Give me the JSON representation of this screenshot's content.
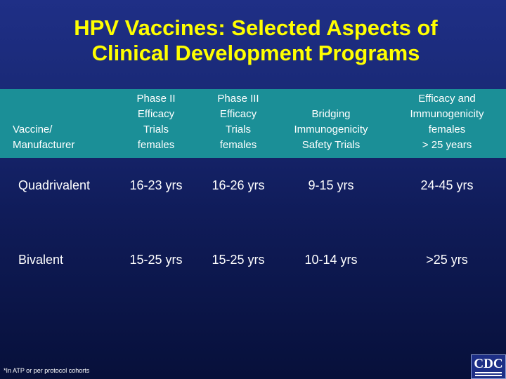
{
  "title": {
    "line1": "HPV Vaccines: Selected Aspects of",
    "line2": "Clinical Development Programs"
  },
  "colors": {
    "title": "#ffff00",
    "header_band": "#1b8f97",
    "background_top": "#1f2f86",
    "background_bottom": "#07103a"
  },
  "table": {
    "headers": {
      "vaccine": [
        "Vaccine/",
        "Manufacturer"
      ],
      "phase2": [
        "Phase II",
        "Efficacy",
        "Trials",
        "females"
      ],
      "phase3": [
        "Phase III",
        "Efficacy",
        "Trials",
        "females"
      ],
      "bridging": [
        "Bridging",
        "Immunogenicity",
        "Safety Trials"
      ],
      "efficacy_imm": [
        "Efficacy and",
        "Immunogenicity",
        "females",
        "> 25 years"
      ]
    },
    "rows": [
      {
        "vaccine": "Quadrivalent",
        "phase2": "16-23 yrs",
        "phase3": "16-26 yrs",
        "bridging": "9-15 yrs",
        "efficacy_imm": "24-45 yrs"
      },
      {
        "vaccine": "Bivalent",
        "phase2": "15-25 yrs",
        "phase3": "15-25 yrs",
        "bridging": "10-14 yrs",
        "efficacy_imm": ">25 yrs"
      }
    ]
  },
  "footnote": "*In ATP or per protocol cohorts",
  "logo": {
    "text": "CDC",
    "icon": "cdc-logo-icon"
  }
}
